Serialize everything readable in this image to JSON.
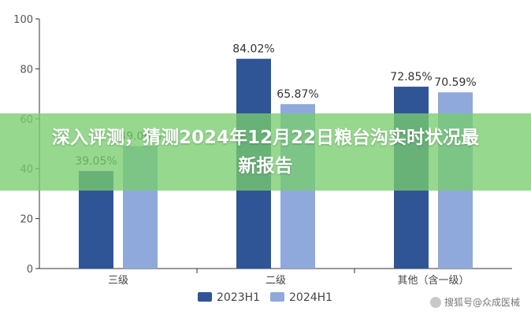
{
  "chart_data": {
    "type": "bar",
    "categories": [
      "三级",
      "二级",
      "其他（含一级）"
    ],
    "series": [
      {
        "name": "2023H1",
        "values": [
          39.05,
          84.02,
          72.85
        ],
        "labels": [
          "39.05%",
          "84.02%",
          "72.85%"
        ],
        "color": "#2f5597"
      },
      {
        "name": "2024H1",
        "values": [
          49.06,
          65.87,
          70.59
        ],
        "labels": [
          "49.06%",
          "65.87%",
          "70.59%"
        ],
        "color": "#8fa9dc"
      }
    ],
    "yticks": [
      "0",
      "20",
      "40",
      "60",
      "80",
      "100"
    ],
    "ylim": [
      0,
      100
    ],
    "grid": false,
    "legend": "bottom"
  },
  "banner": {
    "title": "深入评测，猜测2024年12月22日粮台沟实时状况最新报告"
  },
  "watermark": {
    "text": "搜狐号@众成医械"
  }
}
